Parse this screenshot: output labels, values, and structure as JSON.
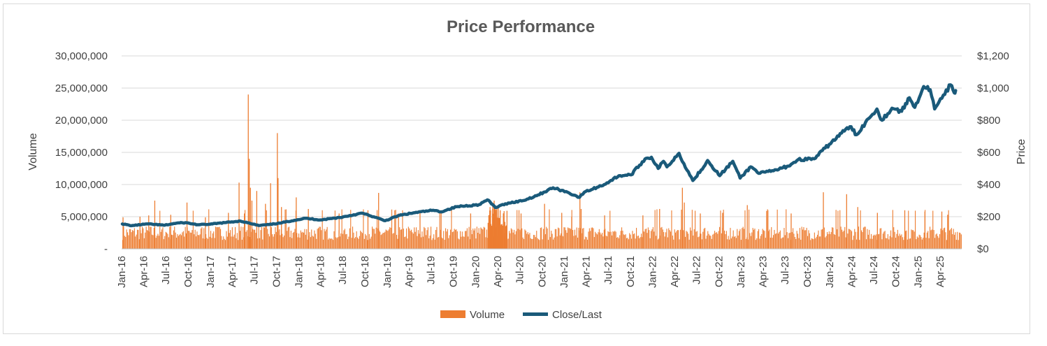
{
  "chart_data": {
    "type": "bar-line-combo",
    "title": "Price Performance",
    "y_left_label": "Volume",
    "y_right_label": "Price",
    "y_left_ticks": [
      "-",
      "5,000,000",
      "10,000,000",
      "15,000,000",
      "20,000,000",
      "25,000,000",
      "30,000,000"
    ],
    "y_left_range": [
      0,
      30000000
    ],
    "y_right_ticks": [
      "$0",
      "$200",
      "$400",
      "$600",
      "$800",
      "$1,000",
      "$1,200"
    ],
    "y_right_range": [
      0,
      1200
    ],
    "x_ticks": [
      "Jan-16",
      "Apr-16",
      "Jul-16",
      "Oct-16",
      "Jan-17",
      "Apr-17",
      "Jul-17",
      "Oct-17",
      "Jan-18",
      "Apr-18",
      "Jul-18",
      "Oct-18",
      "Jan-19",
      "Apr-19",
      "Jul-19",
      "Oct-19",
      "Jan-20",
      "Apr-20",
      "Jul-20",
      "Oct-20",
      "Jan-21",
      "Apr-21",
      "Jul-21",
      "Oct-21",
      "Jan-22",
      "Apr-22",
      "Jul-22",
      "Oct-22",
      "Jan-23",
      "Apr-23",
      "Jul-23",
      "Oct-23",
      "Jan-24",
      "Apr-24",
      "Jul-24",
      "Oct-24",
      "Jan-25",
      "Apr-25"
    ],
    "x_range": [
      "2016-01",
      "2025-06"
    ],
    "gridlines": true,
    "legend_position": "bottom",
    "series": [
      {
        "name": "Volume",
        "type": "bar",
        "axis": "left",
        "color": "#ed7d31",
        "baseline_level": 2500000,
        "points": [
          [
            "2016-01-05",
            4900000
          ],
          [
            "2016-03-15",
            5000000
          ],
          [
            "2016-04-20",
            5200000
          ],
          [
            "2016-05-15",
            7500000
          ],
          [
            "2016-07-20",
            5300000
          ],
          [
            "2016-09-25",
            7200000
          ],
          [
            "2016-12-10",
            4900000
          ],
          [
            "2017-03-15",
            5600000
          ],
          [
            "2017-04-28",
            10300000
          ],
          [
            "2017-05-20",
            5500000
          ],
          [
            "2017-06-05",
            24000000
          ],
          [
            "2017-06-09",
            14000000
          ],
          [
            "2017-06-14",
            9500000
          ],
          [
            "2017-06-20",
            7500000
          ],
          [
            "2017-07-10",
            9000000
          ],
          [
            "2017-08-15",
            7000000
          ],
          [
            "2017-09-05",
            10200000
          ],
          [
            "2017-10-03",
            18000000
          ],
          [
            "2017-10-06",
            11000000
          ],
          [
            "2017-10-20",
            6500000
          ],
          [
            "2017-12-20",
            8000000
          ],
          [
            "2018-02-08",
            6200000
          ],
          [
            "2018-06-15",
            5500000
          ],
          [
            "2018-10-12",
            6000000
          ],
          [
            "2018-11-25",
            8700000
          ],
          [
            "2019-02-15",
            5500000
          ],
          [
            "2019-05-15",
            5800000
          ],
          [
            "2019-08-10",
            6000000
          ],
          [
            "2019-12-10",
            5500000
          ],
          [
            "2020-02-28",
            6500000
          ],
          [
            "2020-03-10",
            7200000
          ],
          [
            "2020-03-16",
            7500000
          ],
          [
            "2020-03-20",
            6800000
          ],
          [
            "2020-04-10",
            6000000
          ],
          [
            "2020-07-05",
            5500000
          ],
          [
            "2020-10-10",
            7000000
          ],
          [
            "2020-12-20",
            5600000
          ],
          [
            "2021-01-30",
            5000000
          ],
          [
            "2021-03-05",
            8800000
          ],
          [
            "2021-03-10",
            6200000
          ],
          [
            "2021-06-15",
            5200000
          ],
          [
            "2021-11-20",
            5200000
          ],
          [
            "2022-01-28",
            6200000
          ],
          [
            "2022-05-02",
            9500000
          ],
          [
            "2022-05-10",
            7200000
          ],
          [
            "2022-07-15",
            5500000
          ],
          [
            "2022-10-15",
            5600000
          ],
          [
            "2023-01-25",
            6800000
          ],
          [
            "2023-04-20",
            6000000
          ],
          [
            "2023-07-25",
            5500000
          ],
          [
            "2023-12-05",
            8800000
          ],
          [
            "2024-03-10",
            8500000
          ],
          [
            "2024-04-25",
            6500000
          ],
          [
            "2024-07-15",
            5600000
          ],
          [
            "2024-11-05",
            6000000
          ],
          [
            "2025-01-27",
            5800000
          ],
          [
            "2025-04-07",
            5800000
          ],
          [
            "2025-05-01",
            5300000
          ]
        ]
      },
      {
        "name": "Close/Last",
        "type": "line",
        "axis": "right",
        "color": "#1a5a7a",
        "points": [
          [
            "2016-01-04",
            155
          ],
          [
            "2016-02-11",
            144
          ],
          [
            "2016-04-15",
            155
          ],
          [
            "2016-06-27",
            147
          ],
          [
            "2016-08-15",
            160
          ],
          [
            "2016-09-20",
            163
          ],
          [
            "2016-11-10",
            150
          ],
          [
            "2016-12-30",
            153
          ],
          [
            "2017-03-01",
            163
          ],
          [
            "2017-05-05",
            173
          ],
          [
            "2017-06-15",
            158
          ],
          [
            "2017-07-20",
            145
          ],
          [
            "2017-09-01",
            151
          ],
          [
            "2017-10-15",
            160
          ],
          [
            "2017-12-15",
            178
          ],
          [
            "2018-01-29",
            190
          ],
          [
            "2018-04-02",
            180
          ],
          [
            "2018-07-02",
            198
          ],
          [
            "2018-09-20",
            222
          ],
          [
            "2018-10-25",
            205
          ],
          [
            "2018-12-24",
            175
          ],
          [
            "2019-02-20",
            208
          ],
          [
            "2019-04-25",
            225
          ],
          [
            "2019-07-10",
            240
          ],
          [
            "2019-08-10",
            230
          ],
          [
            "2019-10-15",
            262
          ],
          [
            "2020-01-15",
            275
          ],
          [
            "2020-02-19",
            305
          ],
          [
            "2020-03-23",
            257
          ],
          [
            "2020-05-15",
            285
          ],
          [
            "2020-07-15",
            300
          ],
          [
            "2020-09-15",
            335
          ],
          [
            "2020-11-16",
            380
          ],
          [
            "2021-01-15",
            352
          ],
          [
            "2021-03-05",
            320
          ],
          [
            "2021-03-25",
            352
          ],
          [
            "2021-06-15",
            400
          ],
          [
            "2021-08-15",
            455
          ],
          [
            "2021-10-04",
            460
          ],
          [
            "2021-12-01",
            560
          ],
          [
            "2021-12-27",
            570
          ],
          [
            "2022-01-24",
            500
          ],
          [
            "2022-02-15",
            545
          ],
          [
            "2022-03-01",
            510
          ],
          [
            "2022-04-20",
            595
          ],
          [
            "2022-05-10",
            530
          ],
          [
            "2022-06-16",
            425
          ],
          [
            "2022-07-20",
            490
          ],
          [
            "2022-08-16",
            550
          ],
          [
            "2022-10-05",
            455
          ],
          [
            "2022-11-28",
            545
          ],
          [
            "2022-12-28",
            440
          ],
          [
            "2023-02-10",
            510
          ],
          [
            "2023-03-20",
            470
          ],
          [
            "2023-05-15",
            485
          ],
          [
            "2023-07-15",
            515
          ],
          [
            "2023-08-25",
            555
          ],
          [
            "2023-10-30",
            560
          ],
          [
            "2023-12-31",
            650
          ],
          [
            "2024-02-20",
            720
          ],
          [
            "2024-03-25",
            760
          ],
          [
            "2024-04-22",
            710
          ],
          [
            "2024-06-10",
            810
          ],
          [
            "2024-07-15",
            870
          ],
          [
            "2024-08-05",
            800
          ],
          [
            "2024-09-15",
            875
          ],
          [
            "2024-10-25",
            855
          ],
          [
            "2024-11-26",
            940
          ],
          [
            "2024-12-18",
            880
          ],
          [
            "2025-01-24",
            1010
          ],
          [
            "2025-02-20",
            990
          ],
          [
            "2025-03-10",
            870
          ],
          [
            "2025-04-21",
            960
          ],
          [
            "2025-05-15",
            1020
          ],
          [
            "2025-05-30",
            970
          ],
          [
            "2025-06-05",
            985
          ]
        ]
      }
    ]
  }
}
